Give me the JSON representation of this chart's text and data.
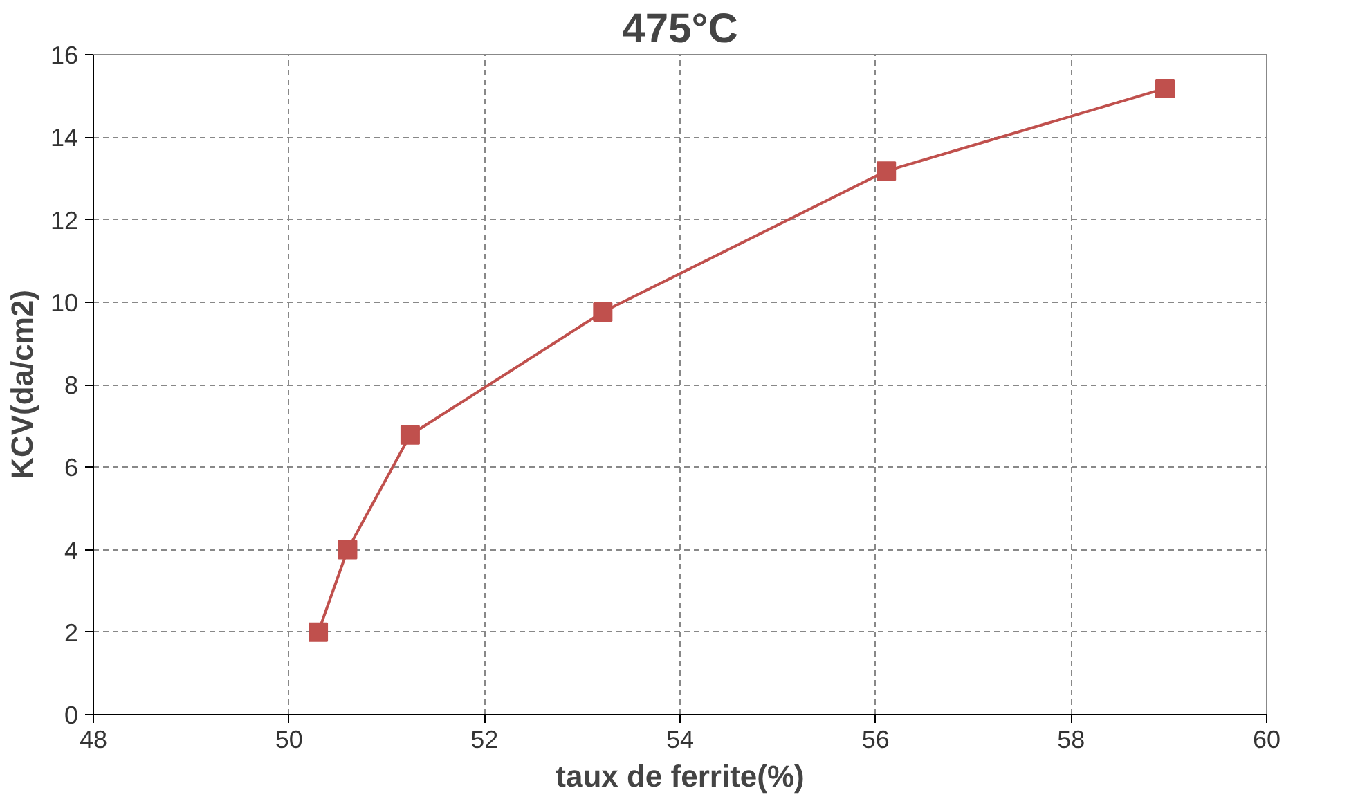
{
  "chart_data": {
    "type": "line",
    "title": "475°C",
    "xlabel": "taux de ferrite(%)",
    "ylabel": "KCV(da/cm2)",
    "xlim": [
      48,
      60
    ],
    "xticks": [
      48,
      50,
      52,
      54,
      56,
      58,
      60
    ],
    "ylim": [
      0,
      16
    ],
    "yticks": [
      0,
      2,
      4,
      6,
      8,
      10,
      12,
      14,
      16
    ],
    "grid": true,
    "marker": "square",
    "line_style": "solid",
    "x": [
      50.3,
      50.6,
      51.24,
      53.21,
      56.11,
      58.96
    ],
    "series": [
      {
        "color": "#c0504d",
        "values": [
          2.0,
          4.0,
          6.78,
          9.76,
          13.18,
          15.18
        ]
      }
    ]
  }
}
